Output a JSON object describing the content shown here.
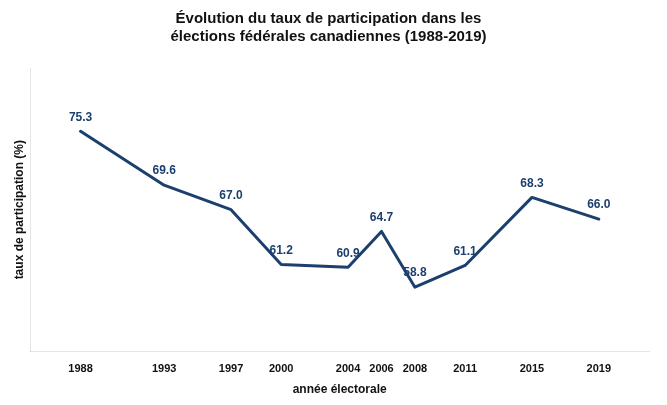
{
  "chart_data": {
    "type": "line",
    "title": "Évolution du taux de participation dans les\nélections fédérales canadiennes (1988-2019)",
    "x_label": "année électorale",
    "y_label": "taux de participation (%)",
    "x": [
      1988,
      1993,
      1997,
      2000,
      2004,
      2006,
      2008,
      2011,
      2015,
      2019
    ],
    "values": [
      75.3,
      69.6,
      67.0,
      61.2,
      60.9,
      64.7,
      58.8,
      61.1,
      68.3,
      66.0
    ],
    "value_labels": [
      "75.3",
      "69.6",
      "67.0",
      "61.2",
      "60.9",
      "64.7",
      "58.8",
      "61.1",
      "68.3",
      "66.0"
    ],
    "color": "#1c3f6e",
    "marker": "none",
    "xlim": [
      1985,
      2022
    ],
    "xticks": [
      1988,
      1993,
      1997,
      2000,
      2004,
      2006,
      2008,
      2011,
      2015,
      2019
    ],
    "ylim": [
      52,
      82
    ],
    "tick_labels": "x",
    "grid": false,
    "data_labels": true
  }
}
